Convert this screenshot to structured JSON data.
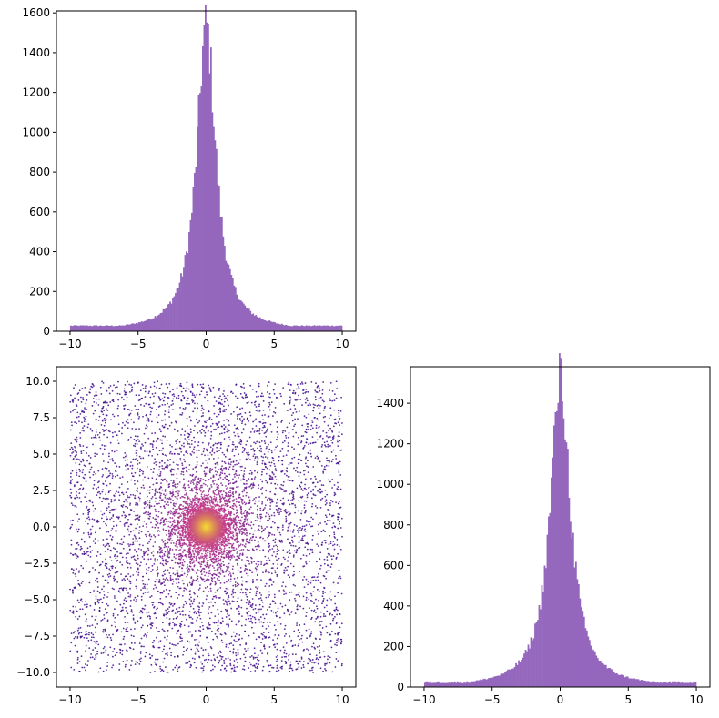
{
  "chart_data": [
    {
      "id": "top-histogram",
      "type": "bar",
      "title": "",
      "xlabel": "",
      "ylabel": "",
      "xlim": [
        -11,
        11
      ],
      "ylim": [
        0,
        1610
      ],
      "bar_color": "#9467bd",
      "x_ticks": [
        -10,
        -5,
        0,
        5,
        10
      ],
      "y_ticks": [
        0,
        200,
        400,
        600,
        800,
        1000,
        1200,
        1400,
        1600
      ],
      "x_tick_labels": [
        "−10",
        "−5",
        "0",
        "5",
        "10"
      ],
      "y_tick_labels": [
        "0",
        "200",
        "400",
        "600",
        "800",
        "1000",
        "1200",
        "1400",
        "1600"
      ],
      "x_range": [
        -10,
        10
      ],
      "peak": 1535,
      "peak_series": [
        1230,
        1470,
        1535,
        1240
      ],
      "tail_value": 28,
      "half_width": 0.85
    },
    {
      "id": "scatter",
      "type": "scatter",
      "title": "",
      "xlabel": "",
      "ylabel": "",
      "xlim": [
        -11,
        11
      ],
      "ylim": [
        -11,
        11
      ],
      "x_ticks": [
        -10,
        -5,
        0,
        5,
        10
      ],
      "y_ticks": [
        -10.0,
        -7.5,
        -5.0,
        -2.5,
        0.0,
        2.5,
        5.0,
        7.5,
        10.0
      ],
      "x_tick_labels": [
        "−10",
        "−5",
        "0",
        "5",
        "10"
      ],
      "y_tick_labels": [
        "−10.0",
        "−7.5",
        "−5.0",
        "−2.5",
        "0.0",
        "2.5",
        "5.0",
        "7.5",
        "10.0"
      ],
      "x_range": [
        -10,
        10
      ],
      "y_range": [
        -10,
        10
      ],
      "colormap": "plasma",
      "color_low": "#3b0a8c",
      "color_mid": "#c1348a",
      "color_high": "#fdf024",
      "center": [
        0,
        0
      ]
    },
    {
      "id": "right-histogram",
      "type": "bar",
      "title": "",
      "xlabel": "",
      "ylabel": "",
      "xlim": [
        -11,
        11
      ],
      "ylim": [
        0,
        1580
      ],
      "bar_color": "#9467bd",
      "x_ticks": [
        -10,
        -5,
        0,
        5,
        10
      ],
      "y_ticks": [
        0,
        200,
        400,
        600,
        800,
        1000,
        1200,
        1400
      ],
      "x_tick_labels": [
        "−10",
        "−5",
        "0",
        "5",
        "10"
      ],
      "y_tick_labels": [
        "0",
        "200",
        "400",
        "600",
        "800",
        "1000",
        "1200",
        "1400"
      ],
      "x_range": [
        -10,
        10
      ],
      "peak": 1515,
      "peak_series": [
        1400,
        1500,
        1515,
        1380
      ],
      "tail_value": 26,
      "half_width": 0.9
    }
  ]
}
